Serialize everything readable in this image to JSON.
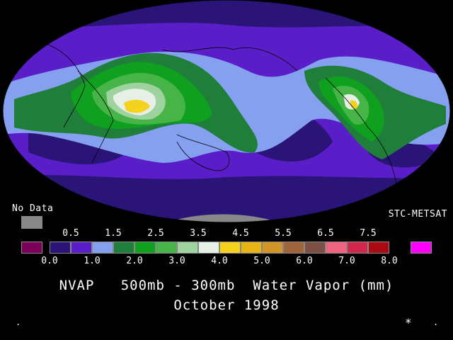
{
  "no_data": {
    "label": "No Data",
    "color": "#888888"
  },
  "source": "STC-METSAT",
  "legend": {
    "zero_color": "#7a005a",
    "colors": [
      "#2a1478",
      "#5a1ec8",
      "#86a0f0",
      "#1e7e3a",
      "#0ea01e",
      "#46b446",
      "#9ed29e",
      "#e6f0e6",
      "#f5d21e",
      "#e6b414",
      "#d29628",
      "#a0643c",
      "#7d5046",
      "#f06482",
      "#d22850",
      "#aa0a14"
    ],
    "over_color": "#ff00ff",
    "top_ticks": [
      "0.5",
      "1.5",
      "2.5",
      "3.5",
      "4.5",
      "5.5",
      "6.5",
      "7.5"
    ],
    "bottom_ticks": [
      "0.0",
      "1.0",
      "2.0",
      "3.0",
      "4.0",
      "5.0",
      "6.0",
      "7.0",
      "8.0"
    ]
  },
  "title": {
    "line1": "NVAP   500mb - 300mb  Water Vapor (mm)",
    "line2": "October 1998"
  },
  "marks": {
    "left": ".",
    "star": "*",
    "right": "."
  }
}
